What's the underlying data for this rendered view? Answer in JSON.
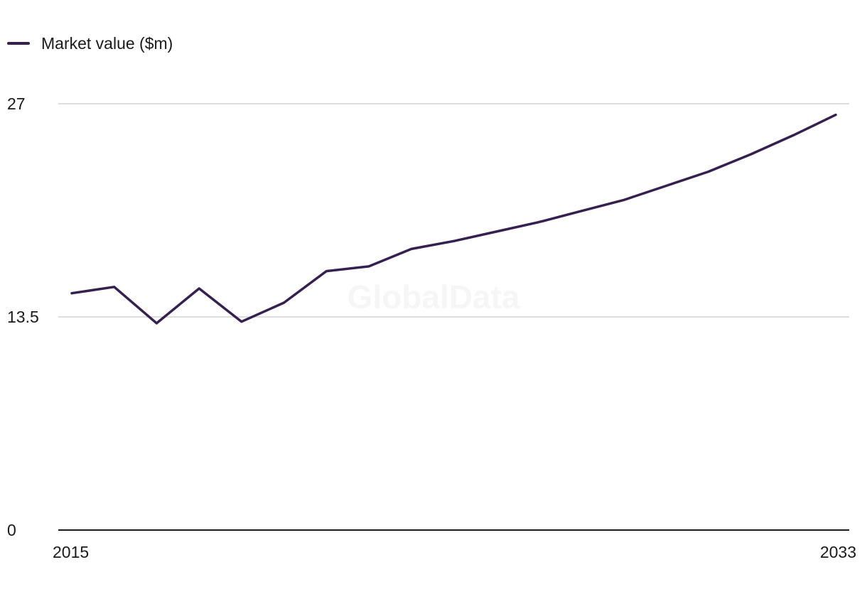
{
  "legend": {
    "label": "Market value ($m)"
  },
  "watermark": "GlobalData",
  "colors": {
    "series": "#35204f",
    "grid": "#d4d4d4",
    "axis": "#1a1a1a"
  },
  "chart_data": {
    "type": "line",
    "title": "",
    "xlabel": "",
    "ylabel": "",
    "x": [
      2015,
      2016,
      2017,
      2018,
      2019,
      2020,
      2021,
      2022,
      2023,
      2024,
      2025,
      2026,
      2027,
      2028,
      2029,
      2030,
      2031,
      2032,
      2033
    ],
    "series": [
      {
        "name": "Market value ($m)",
        "values": [
          15.0,
          15.4,
          13.1,
          15.3,
          13.2,
          14.4,
          16.4,
          16.7,
          17.8,
          18.3,
          18.9,
          19.5,
          20.2,
          20.9,
          21.8,
          22.7,
          23.8,
          25.0,
          26.3
        ]
      }
    ],
    "ylim": [
      0,
      27
    ],
    "yticks": [
      "0",
      "13.5",
      "27"
    ],
    "xticks": [
      "2015",
      "2033"
    ],
    "grid": true,
    "legend_position": "top-left"
  }
}
